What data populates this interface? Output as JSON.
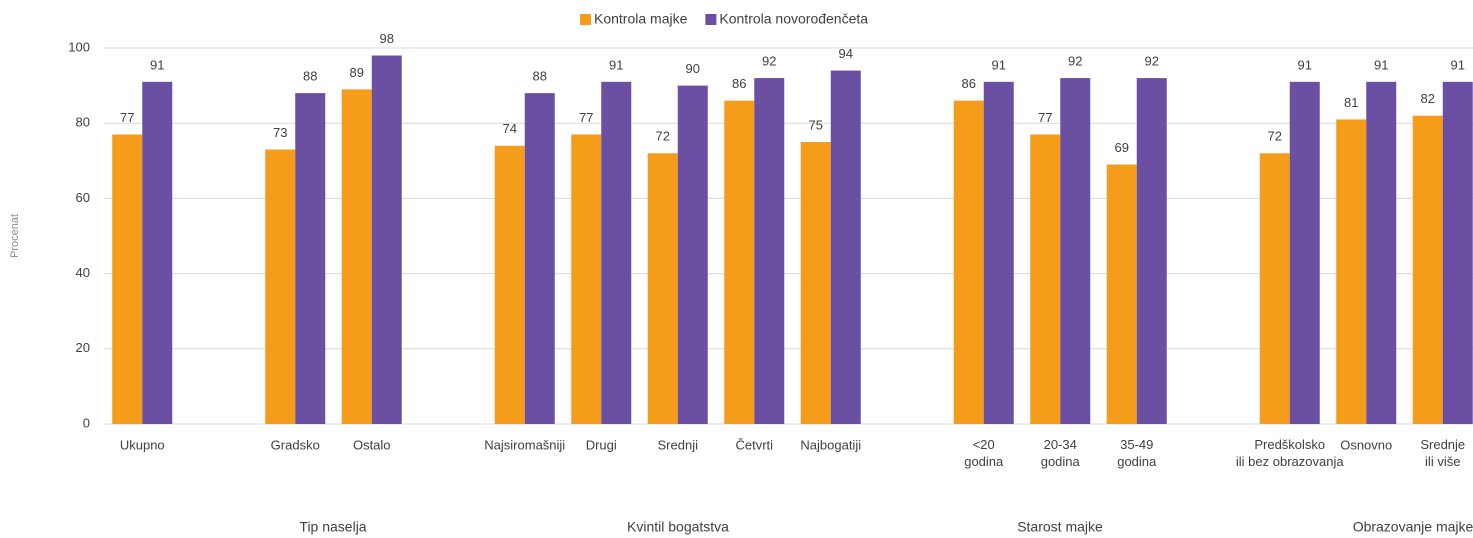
{
  "chart_data": {
    "type": "bar",
    "y_label": "Procenat",
    "categories": [
      "Ukupno",
      null,
      "Gradsko",
      "Ostalo",
      null,
      "Najsiromašniji",
      "Drugi",
      "Srednji",
      "Četvrti",
      "Najbogatiji",
      null,
      "<20\ngodina",
      "20-34\ngodina",
      "35-49\ngodina",
      null,
      "Predškolsko\nili bez obrazovanja",
      "Osnovno",
      "Srednje\nili više"
    ],
    "series": [
      {
        "name": "Kontrola majke",
        "color": "#f59c1a",
        "values": [
          77,
          null,
          73,
          89,
          null,
          74,
          77,
          72,
          86,
          75,
          null,
          86,
          77,
          69,
          null,
          72,
          81,
          82
        ]
      },
      {
        "name": "Kontrola novorođenčeta",
        "color": "#6a4fa3",
        "values": [
          91,
          null,
          88,
          98,
          null,
          88,
          91,
          90,
          92,
          94,
          null,
          91,
          92,
          92,
          null,
          91,
          91,
          91
        ]
      }
    ],
    "groups": [
      "Tip naselja",
      "Kvintil bogatstva",
      "Starost majke",
      "Obrazovanje majke"
    ],
    "ylim": [
      0,
      100
    ],
    "yticks": [
      0,
      20,
      40,
      60,
      80,
      100
    ],
    "grid": true,
    "legend": "top"
  }
}
